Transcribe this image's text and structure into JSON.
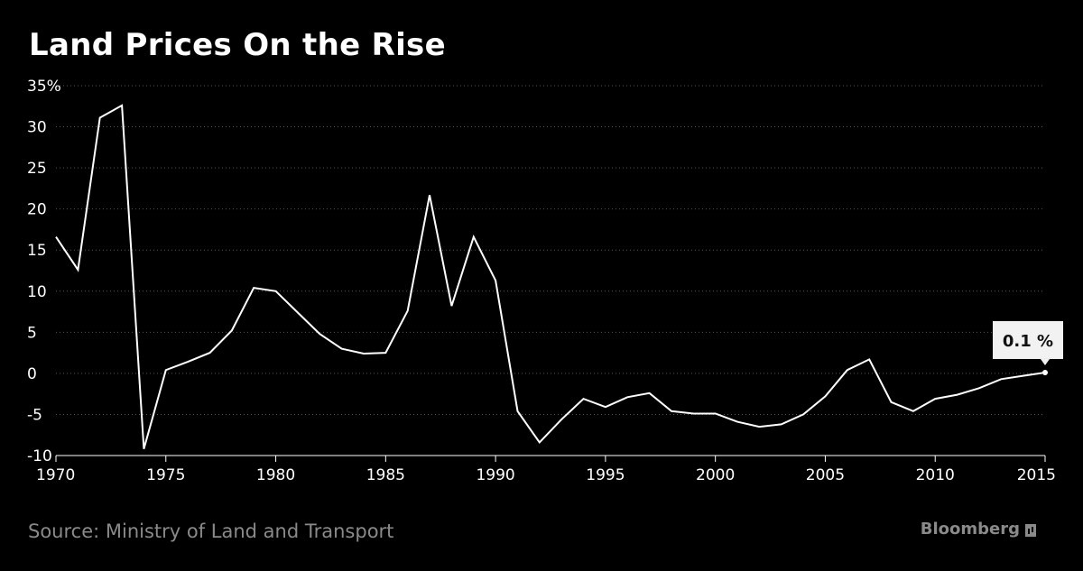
{
  "header": {
    "title": "Land Prices On the Rise"
  },
  "footer": {
    "source": "Source: Ministry of Land and Transport",
    "brand": "Bloomberg"
  },
  "colors": {
    "background": "#000000",
    "line": "#ffffff",
    "grid": "#555555",
    "muted_text": "#8a8a8a",
    "callout_bg": "#f2f2f2",
    "callout_text": "#111111"
  },
  "chart_data": {
    "type": "line",
    "title": "Land Prices On the Rise",
    "xlabel": "",
    "ylabel": "",
    "xlim": [
      1970,
      2015
    ],
    "ylim": [
      -10,
      35
    ],
    "x_ticks": [
      "1970",
      "1975",
      "1980",
      "1985",
      "1990",
      "1995",
      "2000",
      "2005",
      "2010",
      "2015"
    ],
    "y_ticks": [
      "35%",
      "30",
      "25",
      "20",
      "15",
      "10",
      "5",
      "0",
      "-5",
      "-10"
    ],
    "grid": "horizontal dotted",
    "series": [
      {
        "x": [
          1970,
          1971,
          1972,
          1973,
          1974,
          1975,
          1976,
          1977,
          1978,
          1979,
          1980,
          1981,
          1982,
          1983,
          1984,
          1985,
          1986,
          1987,
          1988,
          1989,
          1990,
          1991,
          1992,
          1993,
          1994,
          1995,
          1996,
          1997,
          1998,
          1999,
          2000,
          2001,
          2002,
          2003,
          2004,
          2005,
          2006,
          2007,
          2008,
          2009,
          2010,
          2011,
          2012,
          2013,
          2014,
          2015
        ],
        "values": [
          16.6,
          12.6,
          31.1,
          32.6,
          -9.2,
          0.4,
          1.4,
          2.5,
          5.2,
          10.4,
          10.0,
          7.4,
          4.8,
          3.0,
          2.4,
          2.5,
          7.6,
          21.7,
          8.2,
          16.6,
          11.3,
          -4.6,
          -8.4,
          -5.6,
          -3.1,
          -4.1,
          -2.9,
          -2.4,
          -4.6,
          -4.9,
          -4.9,
          -5.9,
          -6.5,
          -6.2,
          -5.0,
          -2.8,
          0.4,
          1.7,
          -3.5,
          -4.6,
          -3.1,
          -2.6,
          -1.8,
          -0.7,
          -0.3,
          0.1
        ]
      }
    ],
    "annotations": [
      {
        "x": 2015,
        "y": 0.1,
        "label": "0.1 %"
      }
    ]
  }
}
